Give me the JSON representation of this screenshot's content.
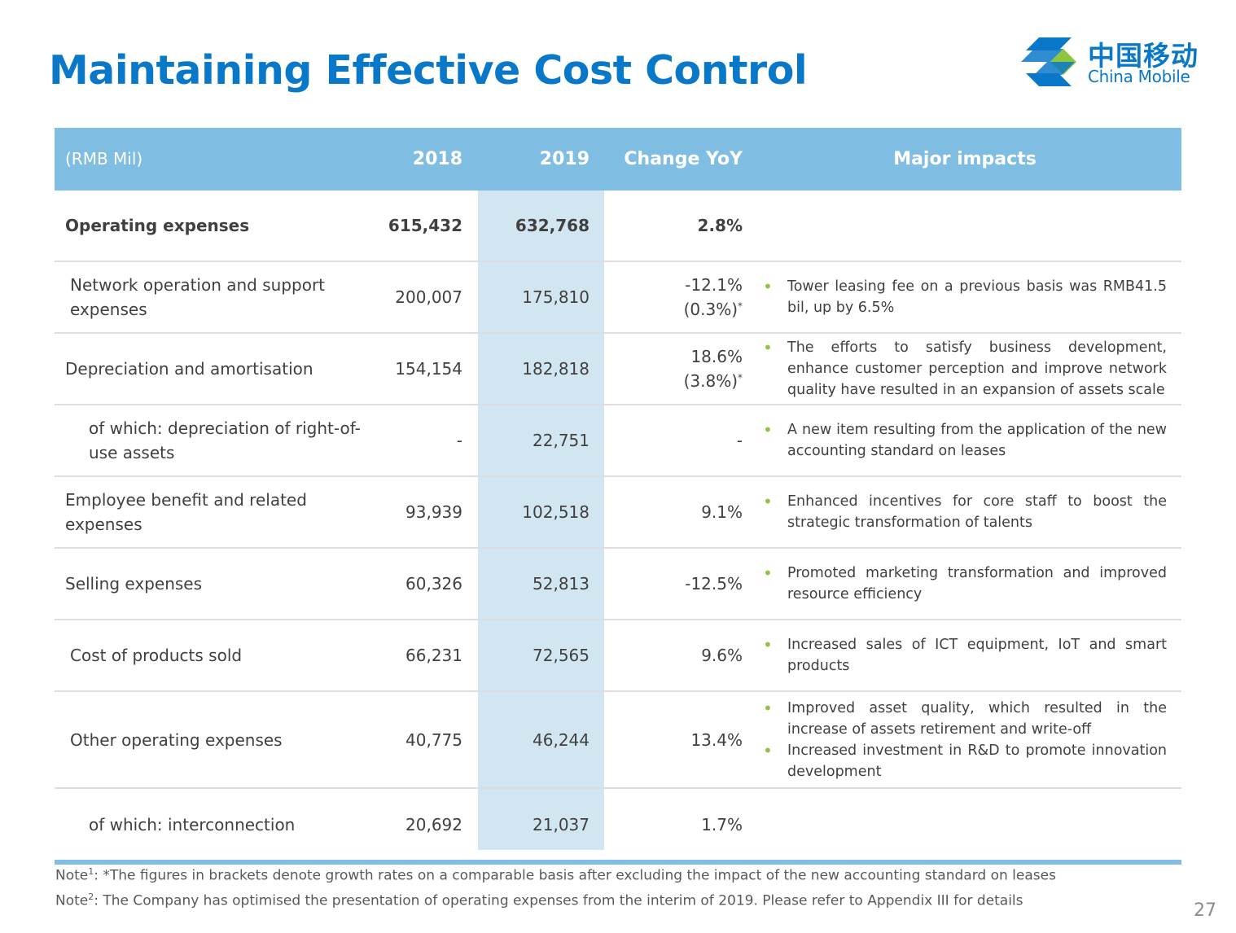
{
  "title": "Maintaining Effective Cost Control",
  "logo": {
    "cn": "中国移动",
    "en": "China Mobile",
    "brand_color": "#0a78c8",
    "accent_color": "#8cc63f"
  },
  "table": {
    "header": {
      "unit": "(RMB Mil)",
      "y2018": "2018",
      "y2019": "2019",
      "change": "Change YoY",
      "impacts": "Major impacts"
    },
    "rows": [
      {
        "label": "Operating expenses",
        "v2018": "615,432",
        "v2019": "632,768",
        "change": "2.8%",
        "change_sub": "",
        "impacts": []
      },
      {
        "label": "Network operation and support expenses",
        "v2018": "200,007",
        "v2019": "175,810",
        "change": "-12.1%",
        "change_sub": "(0.3%)",
        "impacts": [
          "Tower leasing fee on a previous basis was RMB41.5 bil, up by 6.5%"
        ]
      },
      {
        "label": "Depreciation and amortisation",
        "v2018": "154,154",
        "v2019": "182,818",
        "change": "18.6%",
        "change_sub": "(3.8%)",
        "impacts": [
          "The efforts to satisfy business development, enhance customer perception and improve network quality have resulted in an expansion of assets scale"
        ]
      },
      {
        "label": "of which: depreciation of right-of-use assets",
        "v2018": "-",
        "v2019": "22,751",
        "change": "-",
        "change_sub": "",
        "impacts": [
          "A new item resulting from the application of the new accounting standard on leases"
        ]
      },
      {
        "label": "Employee benefit and related expenses",
        "v2018": "93,939",
        "v2019": "102,518",
        "change": "9.1%",
        "change_sub": "",
        "impacts": [
          "Enhanced incentives for core staff to boost the strategic transformation of talents"
        ]
      },
      {
        "label": "Selling expenses",
        "v2018": "60,326",
        "v2019": "52,813",
        "change": "-12.5%",
        "change_sub": "",
        "impacts": [
          "Promoted marketing transformation and improved resource efficiency"
        ]
      },
      {
        "label": "Cost of products sold",
        "v2018": "66,231",
        "v2019": "72,565",
        "change": "9.6%",
        "change_sub": "",
        "impacts": [
          "Increased sales of ICT equipment, IoT and smart products"
        ]
      },
      {
        "label": "Other operating expenses",
        "v2018": "40,775",
        "v2019": "46,244",
        "change": "13.4%",
        "change_sub": "",
        "impacts": [
          "Improved asset quality, which resulted in the increase of assets retirement and write-off",
          "Increased investment in R&D to promote innovation development"
        ]
      },
      {
        "label": "of which: interconnection",
        "v2018": "20,692",
        "v2019": "21,037",
        "change": "1.7%",
        "change_sub": "",
        "impacts": []
      }
    ],
    "star": "*"
  },
  "notes": {
    "n1_prefix": "Note",
    "n1_sup": "1",
    "n1_text": ": *The figures in brackets denote growth rates on a comparable basis after excluding the impact of the new accounting standard on leases",
    "n2_prefix": "Note",
    "n2_sup": "2",
    "n2_text": ": The Company has optimised the presentation of operating expenses from the interim of 2019. Please refer to Appendix III for details"
  },
  "page_number": "27"
}
